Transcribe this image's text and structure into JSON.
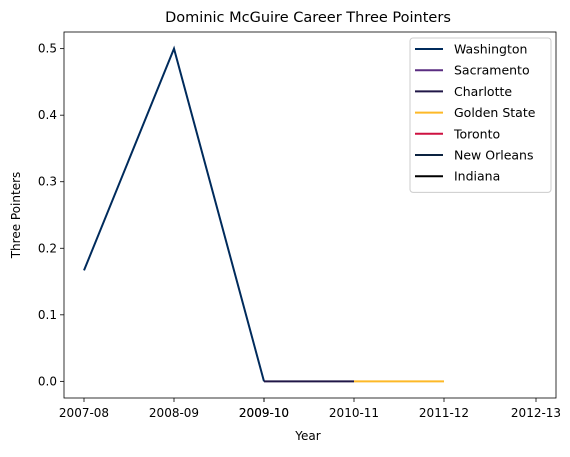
{
  "chart_data": {
    "type": "line",
    "title": "Dominic McGuire Career Three Pointers",
    "xlabel": "Year",
    "ylabel": "Three Pointers",
    "x_ticks": [
      "2007-08",
      "2008-09",
      "2009-10",
      "2009-10",
      "2010-11",
      "2011-12",
      "2012-13"
    ],
    "y_ticks": [
      "0.0",
      "0.1",
      "0.2",
      "0.3",
      "0.4",
      "0.5"
    ],
    "ylim": [
      -0.025,
      0.525
    ],
    "grid": false,
    "legend_position": "top-right",
    "series": [
      {
        "name": "Washington",
        "color": "#002b5c",
        "points": [
          [
            0,
            0.1667
          ],
          [
            1,
            0.5
          ],
          [
            2,
            0.0
          ]
        ]
      },
      {
        "name": "Sacramento",
        "color": "#5a2d81",
        "points": [
          [
            2,
            0.0
          ],
          [
            3,
            0.0
          ]
        ]
      },
      {
        "name": "Charlotte",
        "color": "#201747",
        "points": [
          [
            3,
            0.0
          ],
          [
            4,
            0.0
          ]
        ]
      },
      {
        "name": "Golden State",
        "color": "#fdb927",
        "points": [
          [
            4,
            0.0
          ],
          [
            5,
            0.0
          ]
        ]
      },
      {
        "name": "Toronto",
        "color": "#ce1141",
        "points": []
      },
      {
        "name": "New Orleans",
        "color": "#0c2340",
        "points": []
      },
      {
        "name": "Indiana",
        "color": "#000000",
        "points": []
      }
    ]
  }
}
